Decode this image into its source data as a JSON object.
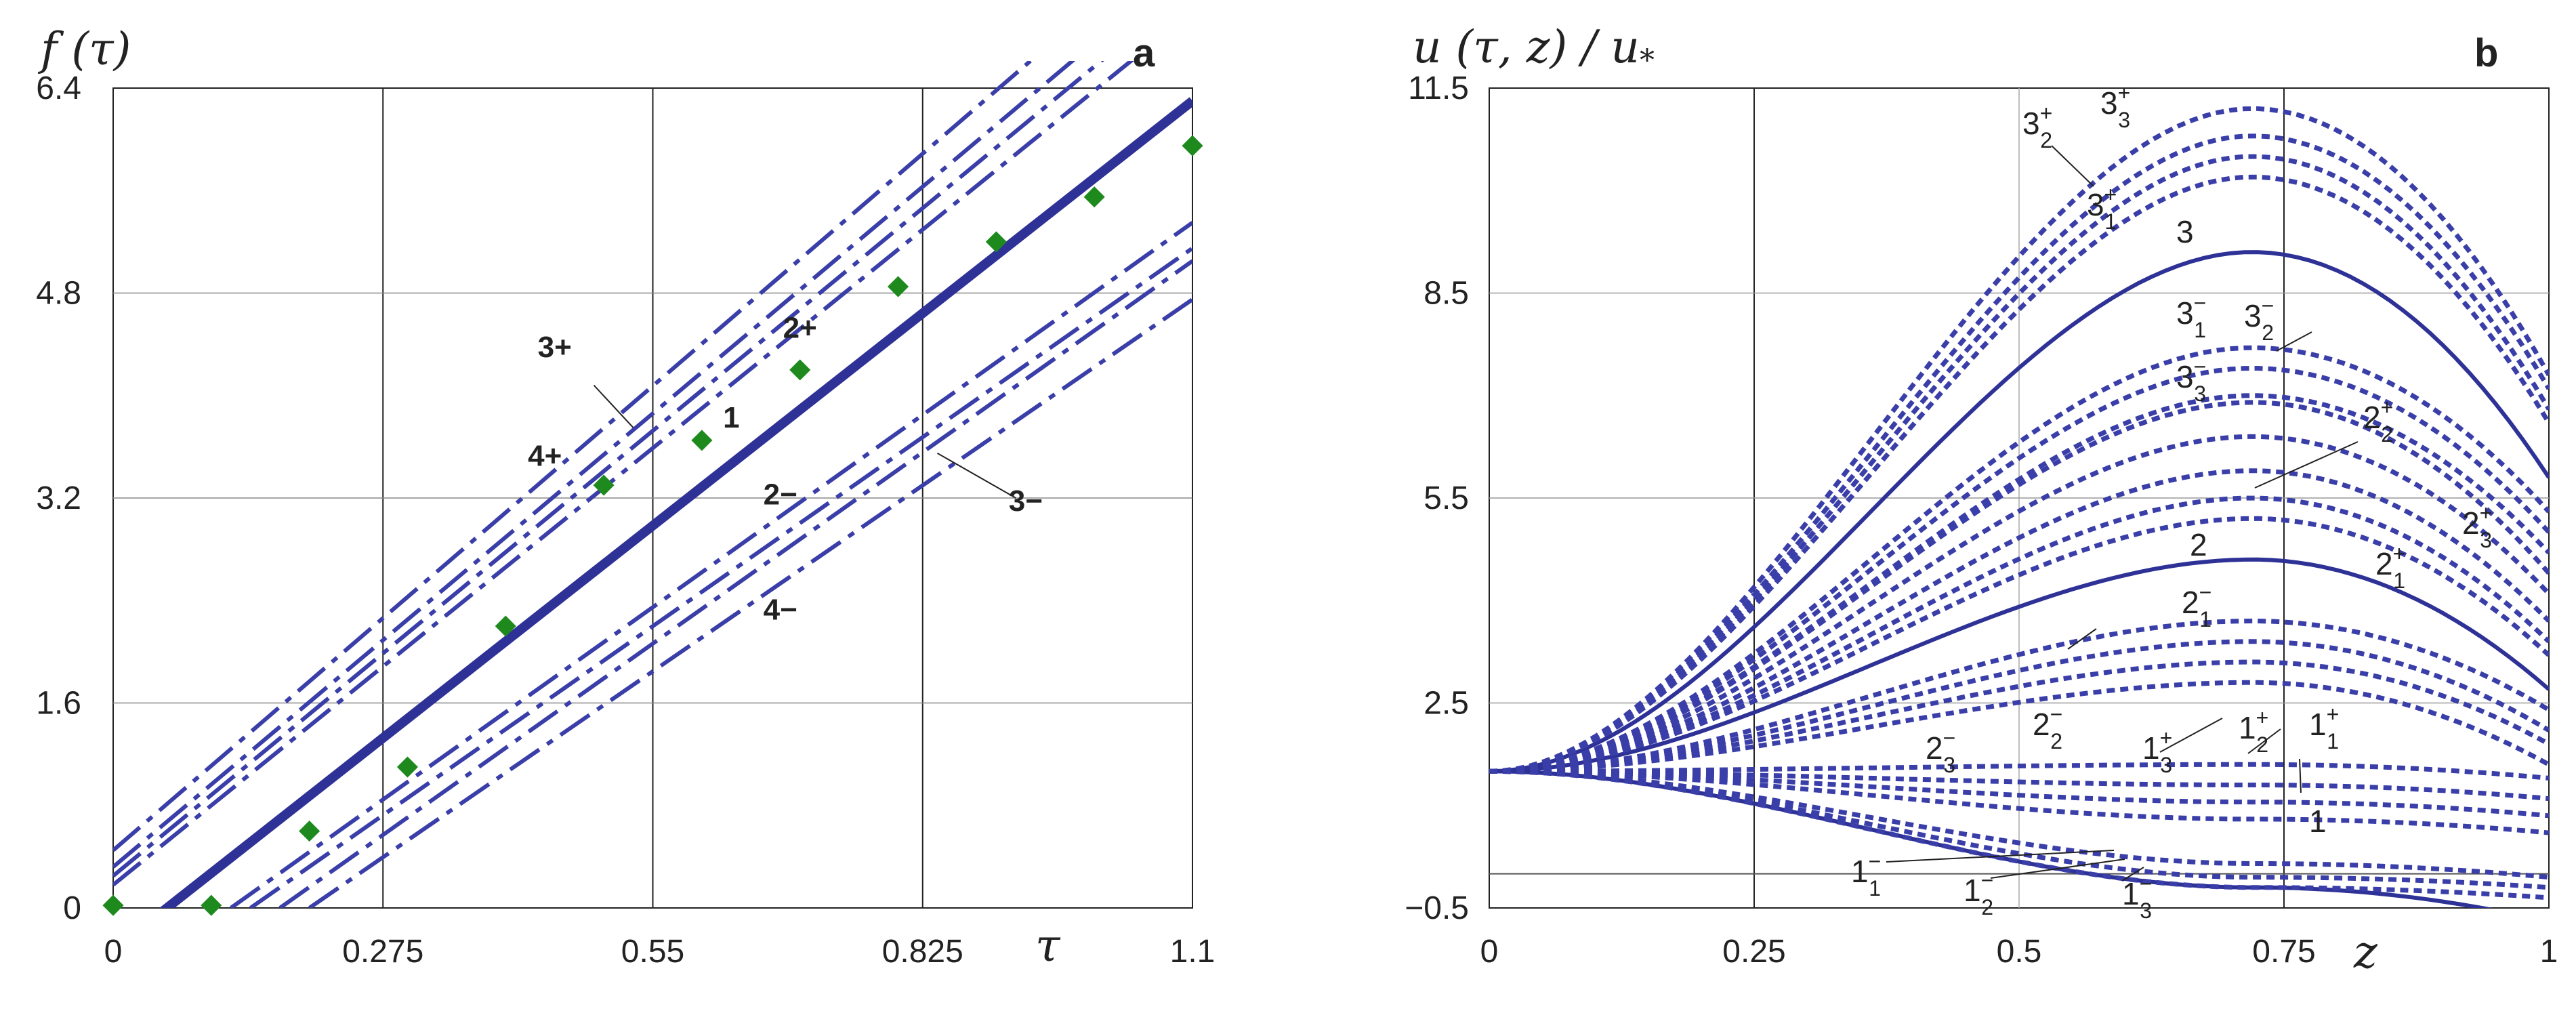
{
  "chart_data": [
    {
      "type": "line",
      "panel": "a",
      "ylabel": "f (τ)",
      "xlabel": "τ",
      "xlim": [
        0,
        1.1
      ],
      "ylim": [
        0,
        6.4
      ],
      "x_ticks": [
        "0",
        "0.275",
        "0.55",
        "0.825",
        "1.1"
      ],
      "y_ticks": [
        "0",
        "1.6",
        "3.2",
        "4.8",
        "6.4"
      ],
      "grid": true,
      "series": [
        {
          "name": "1",
          "style": "solid",
          "points": [
            [
              0.03,
              -0.15
            ],
            [
              1.1,
              6.3
            ]
          ]
        },
        {
          "name": "4+",
          "style": "dash-dot",
          "points": [
            [
              0,
              0.18
            ],
            [
              1.1,
              7.0
            ]
          ]
        },
        {
          "name": "",
          "style": "dash-dot",
          "points": [
            [
              0,
              0.25
            ],
            [
              1.1,
              7.2
            ]
          ]
        },
        {
          "name": "3+",
          "style": "dash-dot",
          "points": [
            [
              0,
              0.32
            ],
            [
              1.1,
              7.4
            ]
          ]
        },
        {
          "name": "",
          "style": "dash-dot",
          "points": [
            [
              0,
              0.45
            ],
            [
              1.1,
              7.7
            ]
          ]
        },
        {
          "name": "2−",
          "style": "dash-dot",
          "points": [
            [
              0.12,
              0.0
            ],
            [
              1.1,
              5.35
            ]
          ]
        },
        {
          "name": "3−",
          "style": "dash-dot",
          "points": [
            [
              0.14,
              0.0
            ],
            [
              1.1,
              5.15
            ]
          ]
        },
        {
          "name": "",
          "style": "dash-dot",
          "points": [
            [
              0.17,
              0.0
            ],
            [
              1.1,
              5.05
            ]
          ]
        },
        {
          "name": "4−",
          "style": "dash-dot",
          "points": [
            [
              0.2,
              0.0
            ],
            [
              1.1,
              4.75
            ]
          ]
        }
      ],
      "markers": {
        "name": "2+",
        "x": [
          0,
          0.1,
          0.2,
          0.3,
          0.4,
          0.5,
          0.6,
          0.7,
          0.8,
          0.9,
          1.0,
          1.1
        ],
        "y": [
          0.02,
          0.02,
          0.6,
          1.1,
          2.2,
          3.3,
          3.65,
          4.2,
          4.85,
          5.2,
          5.55,
          5.95
        ]
      },
      "labels": [
        {
          "text": "3+",
          "x": 0.45,
          "y": 4.3,
          "leader": [
            [
              0.49,
              4.08
            ],
            [
              0.53,
              3.75
            ]
          ]
        },
        {
          "text": "4+",
          "x": 0.44,
          "y": 3.45
        },
        {
          "text": "1",
          "x": 0.63,
          "y": 3.75
        },
        {
          "text": "2+",
          "x": 0.7,
          "y": 4.45
        },
        {
          "text": "2−",
          "x": 0.68,
          "y": 3.15
        },
        {
          "text": "3−",
          "x": 0.93,
          "y": 3.1,
          "leader": [
            [
              0.92,
              3.2
            ],
            [
              0.84,
              3.55
            ]
          ]
        },
        {
          "text": "4−",
          "x": 0.68,
          "y": 2.25
        }
      ],
      "panel_letter": "a"
    },
    {
      "type": "line",
      "panel": "b",
      "ylabel": "u (τ, z) / u",
      "ylabel_sub": "*",
      "xlabel": "z",
      "xlim": [
        0,
        1
      ],
      "ylim": [
        -0.5,
        11.5
      ],
      "x_ticks": [
        "0",
        "0.25",
        "0.5",
        "0.75",
        "1"
      ],
      "y_ticks": [
        "−0.5",
        "2.5",
        "5.5",
        "8.5",
        "11.5"
      ],
      "grid": true,
      "series": [
        {
          "name": "1",
          "style": "solid",
          "peak": -0.2,
          "end": -0.7
        },
        {
          "name": "2",
          "style": "solid",
          "peak": 4.6,
          "end": 2.7
        },
        {
          "name": "3",
          "style": "solid",
          "peak": 9.1,
          "end": 5.8
        },
        {
          "name": "3_3^+",
          "style": "dotted",
          "peak": 11.2,
          "end": 7.3
        },
        {
          "name": "",
          "style": "dotted",
          "peak": 10.8,
          "end": 7.1
        },
        {
          "name": "3_2^+",
          "style": "dotted",
          "peak": 10.5,
          "end": 6.8
        },
        {
          "name": "3_1^+",
          "style": "dotted",
          "peak": 10.2,
          "end": 6.6
        },
        {
          "name": "3_1^-",
          "style": "dotted",
          "peak": 7.7,
          "end": 5.3
        },
        {
          "name": "3_2^-",
          "style": "dotted",
          "peak": 7.4,
          "end": 5.0
        },
        {
          "name": "3_3^-",
          "style": "dotted",
          "peak": 7.0,
          "end": 4.7
        },
        {
          "name": "2_2^+",
          "style": "dotted",
          "peak": 6.9,
          "end": 4.4
        },
        {
          "name": "2_3^+",
          "style": "dotted",
          "peak": 6.4,
          "end": 4.1
        },
        {
          "name": "",
          "style": "dotted",
          "peak": 5.9,
          "end": 3.7
        },
        {
          "name": "2_1^+",
          "style": "dotted",
          "peak": 5.5,
          "end": 3.4
        },
        {
          "name": "",
          "style": "dotted",
          "peak": 5.2,
          "end": 3.2
        },
        {
          "name": "2_1^-",
          "style": "dotted",
          "peak": 3.7,
          "end": 2.4
        },
        {
          "name": "2_2^-",
          "style": "dotted",
          "peak": 3.4,
          "end": 2.1
        },
        {
          "name": "2_3^-",
          "style": "dotted",
          "peak": 3.1,
          "end": 1.9
        },
        {
          "name": "",
          "style": "dotted",
          "peak": 2.8,
          "end": 1.6
        },
        {
          "name": "1_1^+",
          "style": "dotted",
          "peak": 1.6,
          "end": 1.4
        },
        {
          "name": "1_2^+",
          "style": "dotted",
          "peak": 1.3,
          "end": 1.1
        },
        {
          "name": "1_3^+",
          "style": "dotted",
          "peak": 1.05,
          "end": 0.85
        },
        {
          "name": "",
          "style": "dotted",
          "peak": 0.8,
          "end": 0.6
        },
        {
          "name": "1_1^-",
          "style": "dotted",
          "peak": 0.15,
          "end": -0.05
        },
        {
          "name": "1_2^-",
          "style": "dotted",
          "peak": -0.05,
          "end": -0.2
        },
        {
          "name": "1_3^-",
          "style": "dotted",
          "peak": -0.2,
          "end": -0.35
        }
      ],
      "common_start": 1.5,
      "peak_position": 0.72,
      "reference_line": 0,
      "panel_letter": "b"
    }
  ],
  "panel_b_labels": [
    {
      "main": "3",
      "sub": "3",
      "sup": "+"
    },
    {
      "main": "3",
      "sub": "2",
      "sup": "+"
    },
    {
      "main": "3",
      "sub": "1",
      "sup": "+"
    },
    {
      "main": "3",
      "sub": "",
      "sup": ""
    },
    {
      "main": "3",
      "sub": "1",
      "sup": "−"
    },
    {
      "main": "3",
      "sub": "2",
      "sup": "−"
    },
    {
      "main": "3",
      "sub": "3",
      "sup": "−"
    },
    {
      "main": "2",
      "sub": "2",
      "sup": "+"
    },
    {
      "main": "2",
      "sub": "3",
      "sup": "+"
    },
    {
      "main": "2",
      "sub": "1",
      "sup": "+"
    },
    {
      "main": "2",
      "sub": "",
      "sup": ""
    },
    {
      "main": "2",
      "sub": "1",
      "sup": "−"
    },
    {
      "main": "2",
      "sub": "2",
      "sup": "−"
    },
    {
      "main": "2",
      "sub": "3",
      "sup": "−"
    },
    {
      "main": "1",
      "sub": "3",
      "sup": "+"
    },
    {
      "main": "1",
      "sub": "2",
      "sup": "+"
    },
    {
      "main": "1",
      "sub": "1",
      "sup": "+"
    },
    {
      "main": "1",
      "sub": "",
      "sup": ""
    },
    {
      "main": "1",
      "sub": "1",
      "sup": "−"
    },
    {
      "main": "1",
      "sub": "2",
      "sup": "−"
    },
    {
      "main": "1",
      "sub": "3",
      "sup": "−"
    }
  ],
  "colors": {
    "curve": "#3a3ea8",
    "curve_solid": "#2e3196",
    "marker": "#1e8a1e",
    "grid": "#222222"
  }
}
